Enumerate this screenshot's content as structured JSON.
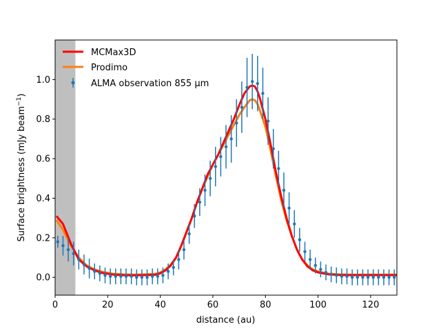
{
  "chart_data": {
    "type": "line",
    "xlabel": "distance (au)",
    "ylabel": "Surface brightness (mJy beam",
    "ylabel_sup": "−1",
    "ylabel_close": ")",
    "xlim": [
      0,
      130
    ],
    "ylim": [
      -0.09,
      1.2
    ],
    "xticks": [
      0,
      20,
      40,
      60,
      80,
      100,
      120
    ],
    "xtick_labels": [
      "0",
      "20",
      "40",
      "60",
      "80",
      "100",
      "120"
    ],
    "yticks": [
      0.0,
      0.2,
      0.4,
      0.6,
      0.8,
      1.0
    ],
    "ytick_labels": [
      "0.0",
      "0.2",
      "0.4",
      "0.6",
      "0.8",
      "1.0"
    ],
    "shaded_region": {
      "x_from": 0,
      "x_to": 7.7,
      "color": "#bfbfbf"
    },
    "legend_position": "top-left",
    "series": [
      {
        "name": "MCMax3D",
        "kind": "line",
        "color": "#ff0000",
        "x": [
          0.5,
          3,
          6,
          9,
          12,
          15,
          18,
          22,
          26,
          30,
          34,
          38,
          40,
          42,
          44,
          46,
          48,
          50,
          52,
          54,
          56,
          58,
          60,
          62,
          64,
          66,
          68,
          70,
          72,
          74,
          75,
          76,
          77,
          78,
          80,
          82,
          84,
          86,
          88,
          90,
          92,
          94,
          96,
          98,
          100,
          104,
          108,
          112,
          116,
          120,
          125,
          130
        ],
        "y": [
          0.31,
          0.27,
          0.17,
          0.09,
          0.055,
          0.035,
          0.022,
          0.014,
          0.011,
          0.01,
          0.011,
          0.013,
          0.02,
          0.035,
          0.06,
          0.1,
          0.16,
          0.23,
          0.3,
          0.38,
          0.45,
          0.52,
          0.57,
          0.62,
          0.68,
          0.74,
          0.8,
          0.87,
          0.93,
          0.965,
          0.97,
          0.965,
          0.94,
          0.9,
          0.8,
          0.67,
          0.53,
          0.41,
          0.3,
          0.21,
          0.14,
          0.09,
          0.055,
          0.035,
          0.025,
          0.015,
          0.012,
          0.011,
          0.011,
          0.011,
          0.011,
          0.011
        ]
      },
      {
        "name": "Prodimo",
        "kind": "line",
        "color": "#ff7f0e",
        "x": [
          0.5,
          3,
          6,
          9,
          12,
          15,
          18,
          22,
          26,
          30,
          34,
          38,
          40,
          42,
          44,
          46,
          48,
          50,
          52,
          54,
          56,
          58,
          60,
          62,
          64,
          66,
          68,
          70,
          72,
          74,
          75,
          76,
          77,
          78,
          80,
          82,
          84,
          86,
          88,
          90,
          92,
          94,
          96,
          98,
          100,
          104,
          108,
          112,
          116,
          120,
          125,
          130
        ],
        "y": [
          0.29,
          0.24,
          0.16,
          0.1,
          0.06,
          0.04,
          0.028,
          0.018,
          0.015,
          0.014,
          0.015,
          0.017,
          0.025,
          0.04,
          0.065,
          0.1,
          0.16,
          0.23,
          0.3,
          0.38,
          0.45,
          0.51,
          0.57,
          0.62,
          0.67,
          0.72,
          0.77,
          0.82,
          0.86,
          0.895,
          0.9,
          0.895,
          0.875,
          0.84,
          0.76,
          0.64,
          0.51,
          0.39,
          0.29,
          0.21,
          0.14,
          0.09,
          0.06,
          0.04,
          0.03,
          0.018,
          0.015,
          0.014,
          0.014,
          0.014,
          0.014,
          0.014
        ]
      },
      {
        "name": "ALMA observation 855 μm",
        "kind": "errorbar",
        "color": "#1f77b4",
        "x": [
          1,
          3,
          5,
          7,
          9,
          11,
          13,
          15,
          17,
          19,
          21,
          23,
          25,
          27,
          29,
          31,
          33,
          35,
          37,
          39,
          41,
          43,
          45,
          47,
          49,
          51,
          53,
          55,
          57,
          59,
          61,
          63,
          65,
          67,
          69,
          71,
          73,
          75,
          77,
          79,
          81,
          83,
          85,
          87,
          89,
          91,
          93,
          95,
          97,
          99,
          101,
          103,
          105,
          107,
          109,
          111,
          113,
          115,
          117,
          119,
          121,
          123,
          125,
          127,
          129
        ],
        "y": [
          0.18,
          0.16,
          0.14,
          0.12,
          0.09,
          0.065,
          0.045,
          0.03,
          0.02,
          0.01,
          0.005,
          0.005,
          0.005,
          0.005,
          0.005,
          0.0,
          0.0,
          0.0,
          0.005,
          0.005,
          0.01,
          0.03,
          0.05,
          0.09,
          0.14,
          0.22,
          0.31,
          0.38,
          0.44,
          0.5,
          0.56,
          0.61,
          0.66,
          0.7,
          0.78,
          0.86,
          0.96,
          0.99,
          0.98,
          0.93,
          0.79,
          0.65,
          0.55,
          0.44,
          0.35,
          0.27,
          0.19,
          0.13,
          0.09,
          0.06,
          0.04,
          0.025,
          0.015,
          0.01,
          0.005,
          0.005,
          0.0,
          0.0,
          0.0,
          0.0,
          0.0,
          0.0,
          0.0,
          0.0,
          0.0
        ],
        "yerr": [
          0.03,
          0.05,
          0.06,
          0.06,
          0.05,
          0.05,
          0.05,
          0.04,
          0.04,
          0.04,
          0.04,
          0.04,
          0.04,
          0.04,
          0.04,
          0.04,
          0.04,
          0.04,
          0.04,
          0.04,
          0.04,
          0.04,
          0.04,
          0.05,
          0.05,
          0.05,
          0.06,
          0.07,
          0.08,
          0.09,
          0.1,
          0.1,
          0.11,
          0.12,
          0.12,
          0.13,
          0.15,
          0.14,
          0.14,
          0.13,
          0.12,
          0.1,
          0.09,
          0.09,
          0.08,
          0.07,
          0.06,
          0.05,
          0.05,
          0.04,
          0.04,
          0.04,
          0.04,
          0.04,
          0.04,
          0.04,
          0.04,
          0.04,
          0.04,
          0.04,
          0.04,
          0.04,
          0.04,
          0.04,
          0.04
        ]
      }
    ]
  }
}
